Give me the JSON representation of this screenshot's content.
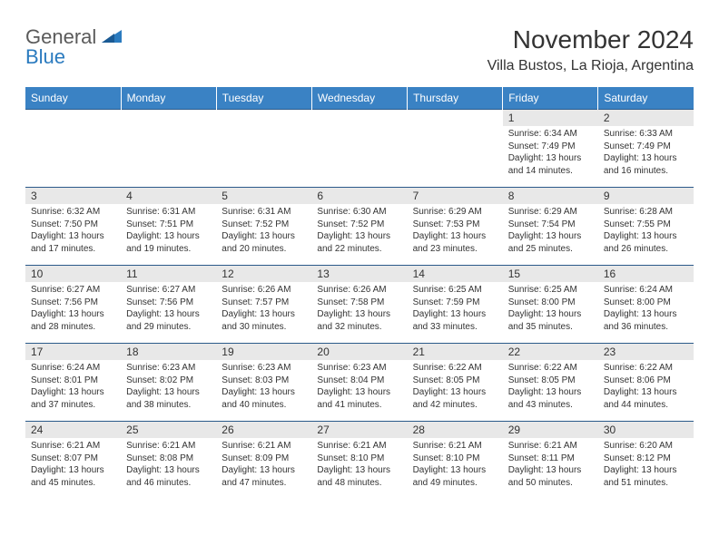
{
  "brand": {
    "part1": "General",
    "part2": "Blue"
  },
  "title": "November 2024",
  "location": "Villa Bustos, La Rioja, Argentina",
  "colors": {
    "header_bg": "#3a82c4",
    "header_text": "#ffffff",
    "daynum_bg": "#e8e8e8",
    "border": "#2b5a8a",
    "body_text": "#333333",
    "brand_gray": "#5a5a5a",
    "brand_blue": "#2b7bbf"
  },
  "day_headers": [
    "Sunday",
    "Monday",
    "Tuesday",
    "Wednesday",
    "Thursday",
    "Friday",
    "Saturday"
  ],
  "weeks": [
    [
      null,
      null,
      null,
      null,
      null,
      {
        "d": "1",
        "sr": "6:34 AM",
        "ss": "7:49 PM",
        "dl": "13 hours and 14 minutes."
      },
      {
        "d": "2",
        "sr": "6:33 AM",
        "ss": "7:49 PM",
        "dl": "13 hours and 16 minutes."
      }
    ],
    [
      {
        "d": "3",
        "sr": "6:32 AM",
        "ss": "7:50 PM",
        "dl": "13 hours and 17 minutes."
      },
      {
        "d": "4",
        "sr": "6:31 AM",
        "ss": "7:51 PM",
        "dl": "13 hours and 19 minutes."
      },
      {
        "d": "5",
        "sr": "6:31 AM",
        "ss": "7:52 PM",
        "dl": "13 hours and 20 minutes."
      },
      {
        "d": "6",
        "sr": "6:30 AM",
        "ss": "7:52 PM",
        "dl": "13 hours and 22 minutes."
      },
      {
        "d": "7",
        "sr": "6:29 AM",
        "ss": "7:53 PM",
        "dl": "13 hours and 23 minutes."
      },
      {
        "d": "8",
        "sr": "6:29 AM",
        "ss": "7:54 PM",
        "dl": "13 hours and 25 minutes."
      },
      {
        "d": "9",
        "sr": "6:28 AM",
        "ss": "7:55 PM",
        "dl": "13 hours and 26 minutes."
      }
    ],
    [
      {
        "d": "10",
        "sr": "6:27 AM",
        "ss": "7:56 PM",
        "dl": "13 hours and 28 minutes."
      },
      {
        "d": "11",
        "sr": "6:27 AM",
        "ss": "7:56 PM",
        "dl": "13 hours and 29 minutes."
      },
      {
        "d": "12",
        "sr": "6:26 AM",
        "ss": "7:57 PM",
        "dl": "13 hours and 30 minutes."
      },
      {
        "d": "13",
        "sr": "6:26 AM",
        "ss": "7:58 PM",
        "dl": "13 hours and 32 minutes."
      },
      {
        "d": "14",
        "sr": "6:25 AM",
        "ss": "7:59 PM",
        "dl": "13 hours and 33 minutes."
      },
      {
        "d": "15",
        "sr": "6:25 AM",
        "ss": "8:00 PM",
        "dl": "13 hours and 35 minutes."
      },
      {
        "d": "16",
        "sr": "6:24 AM",
        "ss": "8:00 PM",
        "dl": "13 hours and 36 minutes."
      }
    ],
    [
      {
        "d": "17",
        "sr": "6:24 AM",
        "ss": "8:01 PM",
        "dl": "13 hours and 37 minutes."
      },
      {
        "d": "18",
        "sr": "6:23 AM",
        "ss": "8:02 PM",
        "dl": "13 hours and 38 minutes."
      },
      {
        "d": "19",
        "sr": "6:23 AM",
        "ss": "8:03 PM",
        "dl": "13 hours and 40 minutes."
      },
      {
        "d": "20",
        "sr": "6:23 AM",
        "ss": "8:04 PM",
        "dl": "13 hours and 41 minutes."
      },
      {
        "d": "21",
        "sr": "6:22 AM",
        "ss": "8:05 PM",
        "dl": "13 hours and 42 minutes."
      },
      {
        "d": "22",
        "sr": "6:22 AM",
        "ss": "8:05 PM",
        "dl": "13 hours and 43 minutes."
      },
      {
        "d": "23",
        "sr": "6:22 AM",
        "ss": "8:06 PM",
        "dl": "13 hours and 44 minutes."
      }
    ],
    [
      {
        "d": "24",
        "sr": "6:21 AM",
        "ss": "8:07 PM",
        "dl": "13 hours and 45 minutes."
      },
      {
        "d": "25",
        "sr": "6:21 AM",
        "ss": "8:08 PM",
        "dl": "13 hours and 46 minutes."
      },
      {
        "d": "26",
        "sr": "6:21 AM",
        "ss": "8:09 PM",
        "dl": "13 hours and 47 minutes."
      },
      {
        "d": "27",
        "sr": "6:21 AM",
        "ss": "8:10 PM",
        "dl": "13 hours and 48 minutes."
      },
      {
        "d": "28",
        "sr": "6:21 AM",
        "ss": "8:10 PM",
        "dl": "13 hours and 49 minutes."
      },
      {
        "d": "29",
        "sr": "6:21 AM",
        "ss": "8:11 PM",
        "dl": "13 hours and 50 minutes."
      },
      {
        "d": "30",
        "sr": "6:20 AM",
        "ss": "8:12 PM",
        "dl": "13 hours and 51 minutes."
      }
    ]
  ],
  "labels": {
    "sunrise": "Sunrise:",
    "sunset": "Sunset:",
    "daylight": "Daylight:"
  }
}
